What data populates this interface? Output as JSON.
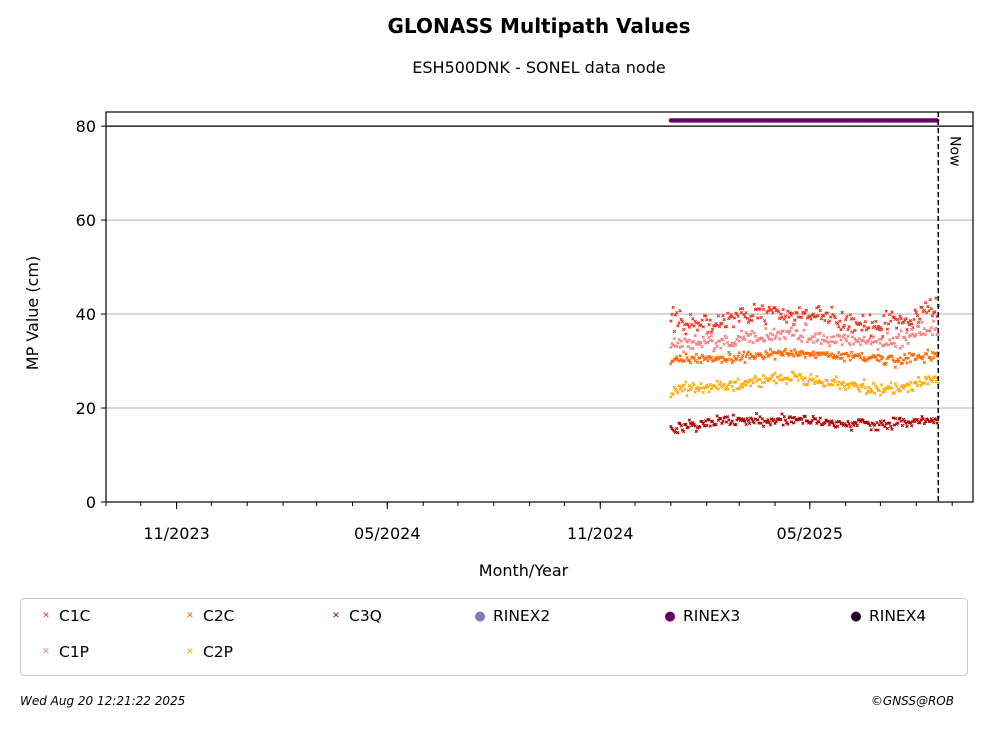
{
  "title": "GLONASS Multipath Values",
  "subtitle": "ESH500DNK - SONEL data node",
  "footer": {
    "timestamp": "Wed Aug 20 12:21:22 2025",
    "credit": "©GNSS@ROB"
  },
  "chart_data": {
    "type": "scatter",
    "xlabel": "Month/Year",
    "ylabel": "MP Value (cm)",
    "ylim": [
      0,
      83
    ],
    "yticks": [
      0,
      20,
      40,
      60,
      80
    ],
    "xlim": [
      "2023-09-01",
      "2025-09-19"
    ],
    "xticks": [
      "11/2023",
      "05/2024",
      "11/2024",
      "05/2025"
    ],
    "grid": "y",
    "now_label": "Now",
    "now_date": "2025-08-20",
    "legend_position": "bottom",
    "series": [
      {
        "name": "C1C",
        "color": "#ee3322",
        "marker": "x",
        "start": "2025-01-01",
        "end": "2025-08-20",
        "trend": [
          [
            0,
            39
          ],
          [
            0.15,
            37.5
          ],
          [
            0.3,
            40.5
          ],
          [
            0.45,
            39.5
          ],
          [
            0.6,
            39.5
          ],
          [
            0.75,
            37.5
          ],
          [
            0.9,
            39
          ],
          [
            1,
            41.5
          ]
        ],
        "spread": 2.2
      },
      {
        "name": "C1P",
        "color": "#f28080",
        "marker": "x",
        "start": "2025-01-01",
        "end": "2025-08-20",
        "trend": [
          [
            0,
            34
          ],
          [
            0.2,
            33.5
          ],
          [
            0.4,
            36
          ],
          [
            0.6,
            35
          ],
          [
            0.8,
            34
          ],
          [
            1,
            37
          ]
        ],
        "spread": 1.8
      },
      {
        "name": "C2C",
        "color": "#ff6600",
        "marker": "x",
        "start": "2025-01-01",
        "end": "2025-08-20",
        "trend": [
          [
            0,
            30.5
          ],
          [
            0.25,
            30.5
          ],
          [
            0.45,
            32
          ],
          [
            0.65,
            31
          ],
          [
            0.85,
            30
          ],
          [
            1,
            31.5
          ]
        ],
        "spread": 1.1
      },
      {
        "name": "C2P",
        "color": "#ffaa00",
        "marker": "x",
        "start": "2025-01-01",
        "end": "2025-08-20",
        "trend": [
          [
            0,
            24
          ],
          [
            0.2,
            24.5
          ],
          [
            0.45,
            26.5
          ],
          [
            0.7,
            24.5
          ],
          [
            0.85,
            24
          ],
          [
            1,
            26.5
          ]
        ],
        "spread": 1.3
      },
      {
        "name": "C3Q",
        "color": "#aa0000",
        "marker": "x",
        "start": "2025-01-01",
        "end": "2025-08-20",
        "trend": [
          [
            0,
            15.5
          ],
          [
            0.2,
            17.5
          ],
          [
            0.4,
            17.5
          ],
          [
            0.6,
            17
          ],
          [
            0.8,
            16.5
          ],
          [
            1,
            17.5
          ]
        ],
        "spread": 1.2
      },
      {
        "name": "RINEX2",
        "color": "#8877bb",
        "marker": "dot",
        "points": []
      },
      {
        "name": "RINEX3",
        "color": "#660066",
        "marker": "dot",
        "y": 81.2,
        "start": "2025-01-01",
        "end": "2025-08-19"
      },
      {
        "name": "RINEX4",
        "color": "#220022",
        "marker": "dot",
        "points": []
      }
    ]
  }
}
